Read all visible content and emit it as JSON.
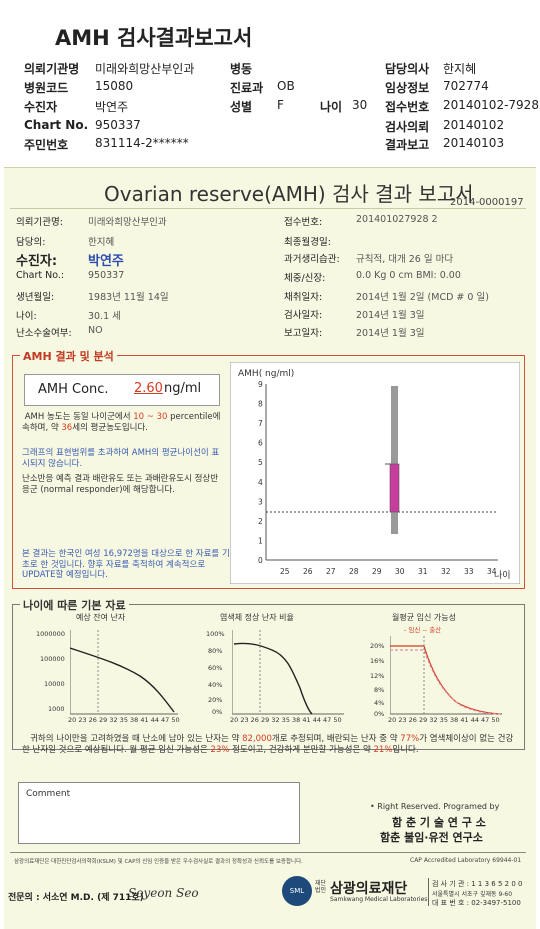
{
  "header": {
    "title": "AMH 검사결과보고서",
    "fields": [
      {
        "label": "의뢰기관명",
        "value": "미래와희망산부인과"
      },
      {
        "label": "병원코드",
        "value": "15080"
      },
      {
        "label": "수진자",
        "value": "박연주"
      },
      {
        "label": "Chart No.",
        "value": "950337"
      },
      {
        "label": "주민번호",
        "value": "831114-2******"
      },
      {
        "label": "병동",
        "value": ""
      },
      {
        "label": "진료과",
        "value": "OB"
      },
      {
        "label": "성별",
        "value": "F"
      },
      {
        "label": "나이",
        "value": "30"
      },
      {
        "label": "담당의사",
        "value": "한지혜"
      },
      {
        "label": "임상정보",
        "value": "702774"
      },
      {
        "label": "접수번호",
        "value": "20140102-79282"
      },
      {
        "label": "검사의뢰",
        "value": "20140102"
      },
      {
        "label": "결과보고",
        "value": "20140103"
      }
    ]
  },
  "report": {
    "title": "Ovarian reserve(AMH) 검사 결과 보고서",
    "doc_code": "2014-0000197",
    "left_fields": [
      {
        "label": "의뢰기관명:",
        "value": "미래와희망산부인과"
      },
      {
        "label": "담당의:",
        "value": "한지혜"
      },
      {
        "label": "수진자:",
        "value": "박연주"
      },
      {
        "label": "Chart No.:",
        "value": "950337"
      },
      {
        "label": "생년월일:",
        "value": "1983년 11월 14일"
      },
      {
        "label": "나이:",
        "value": "30.1 세"
      },
      {
        "label": "난소수술여부:",
        "value": "NO"
      }
    ],
    "right_fields": [
      {
        "label": "접수번호:",
        "value": "201401027928 2"
      },
      {
        "label": "최종월경일:",
        "value": ""
      },
      {
        "label": "과거생리습관:",
        "value": "규칙적, 대개  26 일 마다"
      },
      {
        "label": "체중/신장:",
        "value": "0.0 Kg      0 cm   BMI:  0.00"
      },
      {
        "label": "채취일자:",
        "value": "2014년 1월 2일    (MCD # 0 일)"
      },
      {
        "label": "검사일자:",
        "value": "2014년 1월 3일"
      },
      {
        "label": "보고일자:",
        "value": "2014년 1월 3일"
      }
    ]
  },
  "amh_section": {
    "title": "AMH 결과 및 분석",
    "conc_label": "AMH Conc.",
    "conc_value": "2.60",
    "conc_unit": "ng/ml",
    "p1_a": "AMH 농도는 동일 나이군에서",
    "p1_range": "10 ~ 30",
    "p1_b": "percentile에 속하며, 약",
    "p1_age": "36",
    "p1_c": "세의 평균농도입니다.",
    "p2": "그래프의 표현범위를 초과하여 AMH의 평균나이선이 표시되지 않습니다.",
    "p3": "난소반응 예측 결과 배란유도 또는 과배란유도시 정상반응군 (normal responder)에 해당합니다.",
    "p4": "본 결과는 한국인 여성 16,972명을 대상으로 한 자료를 기초로 한 것입니다. 향후 자료를 축적하여 계속적으로 UPDATE할 예정입니다.",
    "chart": {
      "ylabel": "AMH( ng/ml)",
      "xlabel": "나이",
      "x_ticks": [
        "25",
        "26",
        "27",
        "28",
        "29",
        "30",
        "31",
        "32",
        "33",
        "34"
      ],
      "y_ticks": [
        "0",
        "1",
        "2",
        "3",
        "4",
        "5",
        "6",
        "7",
        "8",
        "9"
      ]
    }
  },
  "age_section": {
    "title": "나이에 따른 기본 자료",
    "chart1_title": "예상 잔여 난자",
    "chart1_y": [
      "1000000",
      "100000",
      "10000",
      "1000"
    ],
    "chart2_title": "염색체 정상 난자 비율",
    "chart2_y": [
      "100%",
      "80%",
      "60%",
      "40%",
      "20%",
      "0%"
    ],
    "chart3_title": "월평균 임신 가능성",
    "chart3_legend": "- 임신 -- 출산",
    "chart3_y": [
      "20%",
      "16%",
      "12%",
      "8%",
      "4%",
      "0%"
    ],
    "x_ticks": "20 23 26 29 32 35 38 41 44 47 50",
    "summary_a": "귀하의 나이만을 고려하였을 때 난소에 남아 있는 난자는 약",
    "summary_eggs": "82,000",
    "summary_b": "개로 추정되며, 배란되는 난자 중 약",
    "summary_pct": "77%",
    "summary_c": "가 염색체이상이 없는 건강한 난자일 것으로 예상됩니다. 월 평균 임신 가능성은",
    "summary_preg": "23%",
    "summary_d": "정도이고, 건강하게 분만할 가능성은 약",
    "summary_birth": "21%",
    "summary_e": "입니다."
  },
  "comment_label": "Comment",
  "footer": {
    "rights": "• Right Reserved. Programed by",
    "lab1": "함 춘 기 술 연 구 소",
    "lab2": "함춘 불임·유전 연구소",
    "notice": "삼광의료재단은 대한진단검사의학회(KSLM) 및 CAP의 신임 인증을 받은 우수검사실로 결과의 정확성과 신뢰도를 보증합니다.",
    "cap": "CAP  Accredited  Laboratory  69944-01",
    "doctor": "전문의 : 서소연 M.D. (제 711호)",
    "signature": "Soyeon Seo",
    "org": "삼광의료재단",
    "org_small": "재단법인",
    "org_en": "Samkwang Medical Laboratories",
    "logo": "SML",
    "info1": "검 사 기 관 : 1 1 3 6 5 2 0 0",
    "info2": "서울특별시 서초구 깊재동 9-60",
    "info3": "대 표 번 호 : 02-3497-5100"
  }
}
